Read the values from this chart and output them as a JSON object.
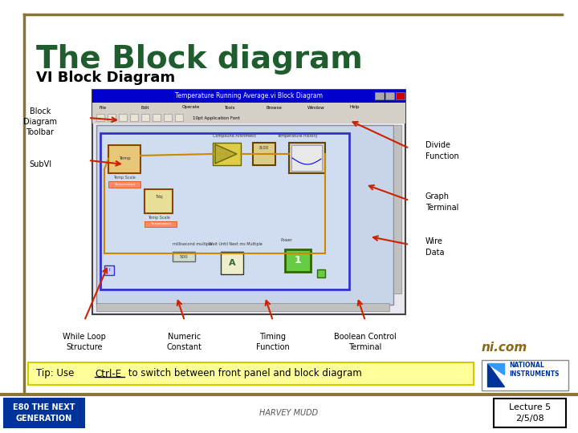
{
  "title": "The Block diagram",
  "subtitle": "VI Block Diagram",
  "background_color": "#FFFFFF",
  "title_color": "#1F5C2E",
  "subtitle_color": "#000000",
  "border_color_top": "#8B7536",
  "border_color_left": "#8B7536",
  "tip_bg_color": "#FFFF99",
  "tip_border_color": "#CCCC00",
  "footer_left": "E80 THE NEXT\nGENERATION",
  "footer_right": "Lecture 5\n2/5/08",
  "footer_center": "HARVEY MUDD",
  "ni_text": "ni.com",
  "ni_color": "#8B6914",
  "footer_bar_color": "#8B7536",
  "label_color": "#000000",
  "arrow_color": "#CC2200",
  "window_title_bg": "#0000CC",
  "window_bg": "#E8E8F0",
  "inner_bg": "#C8D4E8",
  "labels_left": [
    "Block\nDiagram\nToolbar",
    "SubVI"
  ],
  "labels_right": [
    "Divide\nFunction",
    "Graph\nTerminal",
    "Wire\nData"
  ],
  "labels_bottom": [
    "While Loop\nStructure",
    "Numeric\nConstant",
    "Timing\nFunction",
    "Boolean Control\nTerminal"
  ]
}
